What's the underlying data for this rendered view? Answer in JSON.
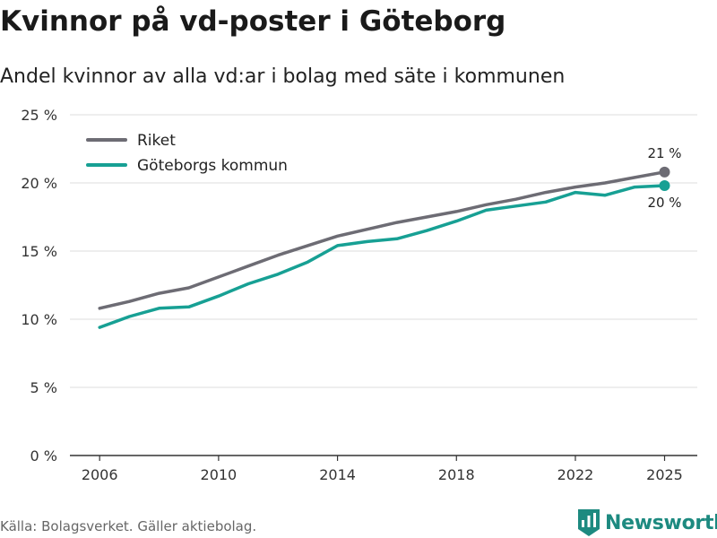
{
  "header": {
    "title": "Kvinnor på vd-poster i Göteborg",
    "subtitle": "Andel kvinnor av alla vd:ar i bolag med säte i kommunen"
  },
  "footer": {
    "source": "Källa: Bolagsverket. Gäller aktiebolag.",
    "brand": "Newsworthy"
  },
  "chart_data": {
    "type": "line",
    "title": "Kvinnor på vd-poster i Göteborg",
    "subtitle": "Andel kvinnor av alla vd:ar i bolag med säte i kommunen",
    "xlabel": "",
    "ylabel": "",
    "x": [
      2006,
      2007,
      2008,
      2009,
      2010,
      2011,
      2012,
      2013,
      2014,
      2015,
      2016,
      2017,
      2018,
      2019,
      2020,
      2021,
      2022,
      2023,
      2024,
      2025
    ],
    "xticks": [
      2006,
      2010,
      2014,
      2018,
      2022,
      2025
    ],
    "yticks": [
      0,
      5,
      10,
      15,
      20,
      25
    ],
    "ytick_labels": [
      "0 %",
      "5 %",
      "10 %",
      "15 %",
      "20 %",
      "25 %"
    ],
    "ylim": [
      0,
      25
    ],
    "grid": "horizontal",
    "legend_position": "top-left",
    "series": [
      {
        "name": "Riket",
        "color": "#6d6c74",
        "values": [
          10.8,
          11.3,
          11.9,
          12.3,
          13.1,
          13.9,
          14.7,
          15.4,
          16.1,
          16.6,
          17.1,
          17.5,
          17.9,
          18.4,
          18.8,
          19.3,
          19.7,
          20.0,
          20.4,
          20.8
        ],
        "end_label": "21 %"
      },
      {
        "name": "Göteborgs kommun",
        "color": "#17a094",
        "values": [
          9.4,
          10.2,
          10.8,
          10.9,
          11.7,
          12.6,
          13.3,
          14.2,
          15.4,
          15.7,
          15.9,
          16.5,
          17.2,
          18.0,
          18.3,
          18.6,
          19.3,
          19.1,
          19.7,
          19.8
        ],
        "end_label": "20 %"
      }
    ]
  }
}
